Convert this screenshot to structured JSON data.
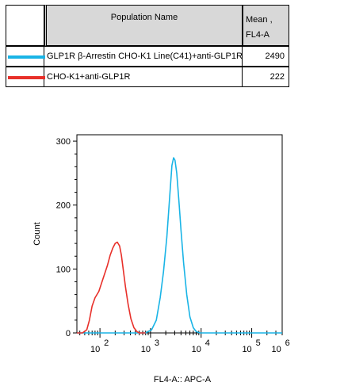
{
  "legend": {
    "header": {
      "population_name": "Population Name",
      "mean_line1": "Mean ,",
      "mean_line2": "FL4-A"
    },
    "rows": [
      {
        "name": "GLP1R β-Arrestin CHO-K1 Line(C41)+anti-GLP1R",
        "mean": "2490",
        "color": "#19b4e6"
      },
      {
        "name": "CHO-K1+anti-GLP1R",
        "mean": "222",
        "color": "#e8302a"
      }
    ]
  },
  "chart_data": {
    "type": "line",
    "title": "",
    "xlabel": "FL4-A:: APC-A",
    "ylabel": "Count",
    "xscale": "log",
    "xlim": [
      35,
      400000
    ],
    "ylim": [
      0,
      310
    ],
    "yticks": [
      0,
      100,
      200,
      300
    ],
    "xticks": [
      {
        "value": 100,
        "label": "10",
        "exp": "2"
      },
      {
        "value": 1000,
        "label": "10",
        "exp": "3"
      },
      {
        "value": 10000,
        "label": "10",
        "exp": "4"
      },
      {
        "value": 100000,
        "label": "10",
        "exp": "5"
      },
      {
        "value": 1000000,
        "label": "10",
        "exp": "6"
      }
    ],
    "grid": false,
    "series": [
      {
        "name": "GLP1R β-Arrestin CHO-K1 Line(C41)+anti-GLP1R",
        "color": "#19b4e6",
        "x": [
          35,
          800,
          1050,
          1300,
          1550,
          1800,
          2100,
          2400,
          2650,
          2850,
          3050,
          3300,
          3650,
          4000,
          4500,
          5200,
          6000,
          7000,
          8000,
          9500,
          400000
        ],
        "y": [
          0,
          0,
          5,
          20,
          55,
          95,
          150,
          215,
          262,
          274,
          270,
          250,
          205,
          160,
          110,
          60,
          25,
          8,
          2,
          0,
          0
        ]
      },
      {
        "name": "CHO-K1+anti-GLP1R",
        "color": "#e8302a",
        "x": [
          35,
          45,
          55,
          62,
          70,
          80,
          95,
          115,
          140,
          160,
          180,
          200,
          220,
          245,
          265,
          290,
          320,
          360,
          410,
          470,
          540,
          600,
          800
        ],
        "y": [
          0,
          0,
          5,
          20,
          42,
          55,
          65,
          85,
          105,
          122,
          133,
          140,
          142,
          136,
          122,
          98,
          72,
          45,
          22,
          8,
          2,
          0,
          0
        ]
      }
    ]
  }
}
